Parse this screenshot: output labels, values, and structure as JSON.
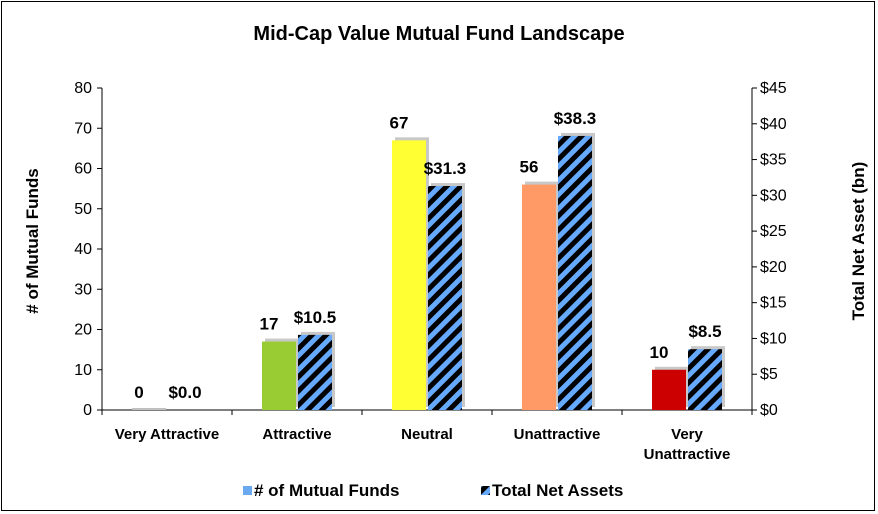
{
  "chart_data": {
    "type": "bar",
    "title": "Mid-Cap Value Mutual Fund Landscape",
    "categories": [
      "Very Attractive",
      "Attractive",
      "Neutral",
      "Unattractive",
      "Very Unattractive"
    ],
    "category_lines": [
      [
        "Very Attractive"
      ],
      [
        "Attractive"
      ],
      [
        "Neutral"
      ],
      [
        "Unattractive"
      ],
      [
        "Very",
        "Unattractive"
      ]
    ],
    "series": [
      {
        "name": "# of Mutual Funds",
        "axis": "left",
        "values": [
          0,
          17,
          67,
          56,
          10
        ],
        "labels": [
          "0",
          "17",
          "67",
          "56",
          "10"
        ],
        "colors": [
          "#c0c0c0",
          "#99cc33",
          "#ffff33",
          "#ff9966",
          "#cc0000"
        ]
      },
      {
        "name": "Total Net Assets",
        "axis": "right",
        "values": [
          0.0,
          10.5,
          31.3,
          38.3,
          8.5
        ],
        "labels": [
          "$0.0",
          "$10.5",
          "$31.3",
          "$38.3",
          "$8.5"
        ],
        "pattern": "diagonal-stripes",
        "colors": [
          "#000000",
          "#66aaff"
        ]
      }
    ],
    "ylabel": "# of Mutual Funds",
    "ylim": [
      0,
      80
    ],
    "yticks": [
      0,
      10,
      20,
      30,
      40,
      50,
      60,
      70,
      80
    ],
    "ylabel_right": "Total Net Asset (bn)",
    "ylim_right": [
      0,
      45
    ],
    "yticks_right": [
      "$0",
      "$5",
      "$10",
      "$15",
      "$20",
      "$25",
      "$30",
      "$35",
      "$40",
      "$45"
    ],
    "legend_position": "bottom",
    "legend_swatch_colors": [
      "#6aa8f0",
      "#000000"
    ],
    "grid": false
  }
}
